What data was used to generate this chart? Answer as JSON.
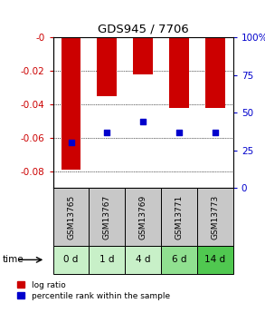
{
  "title": "GDS945 / 7706",
  "samples": [
    "GSM13765",
    "GSM13767",
    "GSM13769",
    "GSM13771",
    "GSM13773"
  ],
  "time_labels": [
    "0 d",
    "1 d",
    "4 d",
    "6 d",
    "14 d"
  ],
  "log_ratios": [
    -0.079,
    -0.035,
    -0.022,
    -0.042,
    -0.042
  ],
  "percentile_ranks": [
    30,
    37,
    44,
    37,
    37
  ],
  "bar_color": "#cc0000",
  "dot_color": "#0000cc",
  "ylim_left": [
    -0.09,
    0.0
  ],
  "ylim_right": [
    0,
    100
  ],
  "yticks_left": [
    0.0,
    -0.02,
    -0.04,
    -0.06,
    -0.08
  ],
  "yticks_right": [
    0,
    25,
    50,
    75,
    100
  ],
  "ylabel_left_color": "#cc0000",
  "ylabel_right_color": "#0000cc",
  "bar_width": 0.55,
  "sample_bg_color": "#c8c8c8",
  "time_colors": [
    "#c8f0c8",
    "#c8f0c8",
    "#c8f0c8",
    "#90e090",
    "#50c850"
  ],
  "legend_log_color": "#cc0000",
  "legend_pct_color": "#0000cc",
  "fig_width": 2.93,
  "fig_height": 3.45,
  "dpi": 100
}
